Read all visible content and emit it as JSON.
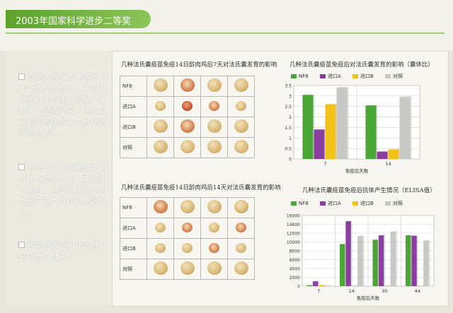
{
  "header": {
    "title": "2003年国家科学进步二等奖"
  },
  "bullets": [
    "与国内现有的中等毒力IBD活疫苗相比，其突破母源抗体的能力增强，保护效力显著提高，免疫鸡对超强毒株的攻击也有坚强的抵抗力。",
    "与进口的中等偏强毒力的IBD疫苗相比，其免疫力相当，但没有这些疫苗引起严重免疫抑制的副作用。",
    "疫苗病毒在SPF鸡胚产生的毒价极高。"
  ],
  "photo_grid_1": {
    "title": "几种法氏囊疫苗免疫14日龄肉鸡后7天对法氏囊发育的影响",
    "rows": [
      "NF8",
      "进口A",
      "进口B",
      "对照"
    ]
  },
  "photo_grid_2": {
    "title": "几种法氏囊疫苗免疫14日龄肉鸡后14天对法氏囊发育的影响",
    "rows": [
      "NF8",
      "进口A",
      "进口B",
      "对照"
    ]
  },
  "colors": {
    "NF8": "#4aa637",
    "进口A": "#8a3fa0",
    "进口B": "#f2c21a",
    "对照": "#c8c8c4"
  },
  "chart_data": [
    {
      "type": "bar",
      "title": "几种法氏囊疫苗免疫后对法氏囊发育的影响（囊体比）",
      "xlabel": "免疫后天数",
      "ylabel": "",
      "categories": [
        "7",
        "14"
      ],
      "ylim": [
        0,
        3.5
      ],
      "yticks": [
        0,
        0.5,
        1,
        1.5,
        2,
        2.5,
        3,
        3.5
      ],
      "series": [
        {
          "name": "NF8",
          "values": [
            3.05,
            2.55
          ]
        },
        {
          "name": "进口A",
          "values": [
            1.4,
            0.35
          ]
        },
        {
          "name": "进口B",
          "values": [
            2.6,
            0.45
          ]
        },
        {
          "name": "对照",
          "values": [
            3.4,
            2.95
          ]
        }
      ],
      "legend_position": "top"
    },
    {
      "type": "bar",
      "title": "几种法氏囊疫苗免疫后抗体产生情况（ELISA值）",
      "xlabel": "免疫后天数",
      "ylabel": "",
      "categories": [
        "7",
        "14",
        "30",
        "44"
      ],
      "ylim": [
        0,
        16000
      ],
      "yticks": [
        0,
        2000,
        4000,
        6000,
        8000,
        10000,
        12000,
        14000,
        16000
      ],
      "series": [
        {
          "name": "NF8",
          "values": [
            200,
            9500,
            10500,
            11500
          ]
        },
        {
          "name": "进口A",
          "values": [
            1100,
            14700,
            11500,
            11400
          ]
        },
        {
          "name": "进口B",
          "values": [
            200,
            0,
            0,
            0
          ]
        },
        {
          "name": "对照",
          "values": [
            0,
            11300,
            12300,
            10300
          ]
        }
      ],
      "legend_position": "top"
    }
  ]
}
